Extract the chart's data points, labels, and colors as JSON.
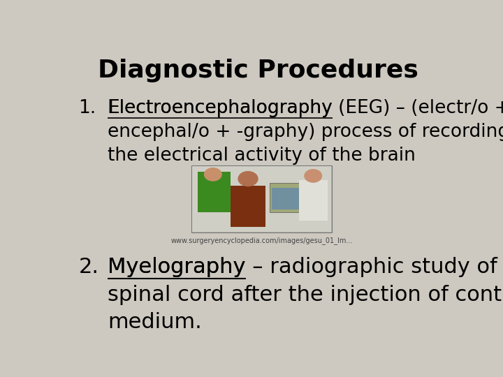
{
  "title": "Diagnostic Procedures",
  "title_fontsize": 26,
  "background_color": "#cdc9c0",
  "text_color": "#000000",
  "item1_underlined": "Electroencephalography",
  "item1_rest_line1": " (EEG) – (electr/o +",
  "item1_line2": "encephal/o + -graphy) process of recording",
  "item1_line3": "the electrical activity of the brain",
  "item1_fontsize": 19,
  "item2_underlined": "Myelography",
  "item2_rest_line1": " – radiographic study of the",
  "item2_line2": "spinal cord after the injection of contrast",
  "item2_line3": "medium.",
  "item2_fontsize": 22,
  "caption": "www.surgeryencyclopedia.com/images/gesu_01_Im...",
  "caption_fontsize": 7
}
